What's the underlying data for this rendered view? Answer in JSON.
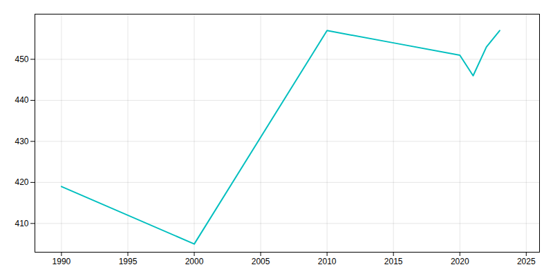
{
  "chart_data": {
    "type": "line",
    "x": [
      1990,
      2000,
      2010,
      2015,
      2020,
      2021,
      2022,
      2023
    ],
    "values": [
      419,
      405,
      457,
      454,
      451,
      446,
      453,
      457
    ],
    "color": "#00BFBF",
    "xlim": [
      1988,
      2026
    ],
    "ylim": [
      403,
      461
    ],
    "xticks": [
      1990,
      1995,
      2000,
      2005,
      2010,
      2015,
      2020,
      2025
    ],
    "yticks": [
      410,
      420,
      430,
      440,
      450
    ],
    "grid": true
  }
}
